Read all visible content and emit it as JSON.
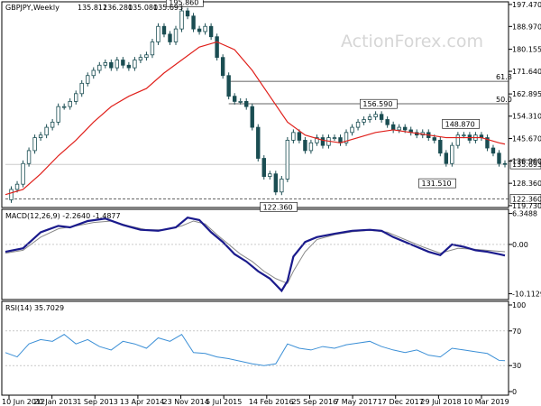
{
  "chart_data": [
    {
      "type": "candlestick",
      "panel": "price",
      "title": "GBPJPY,Weekly",
      "ohlc": {
        "open": "135.812",
        "high": "136.280",
        "low": "135.080",
        "close": "135.693"
      },
      "watermark": "ActionForex.com",
      "y_ticks": [
        "197.470",
        "188.970",
        "180.155",
        "171.640",
        "162.895",
        "154.310",
        "145.670",
        "136.960",
        "128.360",
        "119.730"
      ],
      "ylim": [
        119.0,
        198.5
      ],
      "current_price": "135.693",
      "x_ticks": [
        "10 Jun 2012",
        "20 Jan 2013",
        "1 Sep 2013",
        "13 Apr 2014",
        "23 Nov 2014",
        "5 Jul 2015",
        "14 Feb 2016",
        "25 Sep 2016",
        "7 May 2017",
        "17 Dec 2017",
        "29 Jul 2018",
        "10 Mar 2019"
      ],
      "annotations": [
        {
          "text": "195.860",
          "x": 30.5,
          "y": 195.86
        },
        {
          "text": "122.360",
          "x": 46.5,
          "y": 122.36
        },
        {
          "text": "156.590",
          "x": 63.5,
          "y": 156.59
        },
        {
          "text": "148.870",
          "x": 77.5,
          "y": 148.87
        },
        {
          "text": "131.510",
          "x": 73.5,
          "y": 131.51
        }
      ],
      "horizontal_levels": [
        {
          "label": "61.8",
          "value": 167.77
        },
        {
          "label": "50.0",
          "value": 159.11
        },
        {
          "label": "122.360",
          "value": 122.36
        }
      ],
      "close_series": [
        [
          0,
          122.0
        ],
        [
          1,
          126.0
        ],
        [
          2,
          128.0
        ],
        [
          3,
          136.0
        ],
        [
          4,
          141.0
        ],
        [
          5,
          146.0
        ],
        [
          6,
          147.0
        ],
        [
          7,
          150.0
        ],
        [
          8,
          152.0
        ],
        [
          9,
          158.0
        ],
        [
          10,
          158.0
        ],
        [
          11,
          160.0
        ],
        [
          12,
          163.0
        ],
        [
          13,
          167.0
        ],
        [
          14,
          170.0
        ],
        [
          15,
          172.0
        ],
        [
          16,
          174.0
        ],
        [
          17,
          175.0
        ],
        [
          18,
          173.0
        ],
        [
          19,
          176.0
        ],
        [
          20,
          174.0
        ],
        [
          21,
          173.0
        ],
        [
          22,
          176.0
        ],
        [
          23,
          177.0
        ],
        [
          24,
          178.0
        ],
        [
          25,
          183.0
        ],
        [
          26,
          189.0
        ],
        [
          27,
          186.0
        ],
        [
          28,
          183.0
        ],
        [
          29,
          188.0
        ],
        [
          30,
          195.0
        ],
        [
          31,
          193.0
        ],
        [
          32,
          188.0
        ],
        [
          33,
          187.0
        ],
        [
          34,
          189.0
        ],
        [
          35,
          185.0
        ],
        [
          36,
          177.0
        ],
        [
          37,
          170.0
        ],
        [
          38,
          162.0
        ],
        [
          39,
          160.0
        ],
        [
          40,
          160.0
        ],
        [
          41,
          158.0
        ],
        [
          42,
          150.0
        ],
        [
          43,
          138.0
        ],
        [
          44,
          131.0
        ],
        [
          45,
          132.0
        ],
        [
          46,
          125.0
        ],
        [
          47,
          130.0
        ],
        [
          48,
          145.0
        ],
        [
          49,
          148.0
        ],
        [
          50,
          145.0
        ],
        [
          51,
          141.0
        ],
        [
          52,
          144.0
        ],
        [
          53,
          146.0
        ],
        [
          54,
          143.0
        ],
        [
          55,
          146.0
        ],
        [
          56,
          146.0
        ],
        [
          57,
          144.0
        ],
        [
          58,
          148.0
        ],
        [
          59,
          150.0
        ],
        [
          60,
          152.0
        ],
        [
          61,
          153.0
        ],
        [
          62,
          154.0
        ],
        [
          63,
          155.0
        ],
        [
          64,
          153.0
        ],
        [
          65,
          151.0
        ],
        [
          66,
          149.0
        ],
        [
          67,
          150.0
        ],
        [
          68,
          149.0
        ],
        [
          69,
          148.0
        ],
        [
          70,
          147.0
        ],
        [
          71,
          148.0
        ],
        [
          72,
          146.0
        ],
        [
          73,
          145.0
        ],
        [
          74,
          140.0
        ],
        [
          75,
          136.0
        ],
        [
          76,
          143.0
        ],
        [
          77,
          147.0
        ],
        [
          78,
          147.0
        ],
        [
          79,
          145.0
        ],
        [
          80,
          147.0
        ],
        [
          81,
          146.0
        ],
        [
          82,
          142.0
        ],
        [
          83,
          140.0
        ],
        [
          84,
          136.0
        ],
        [
          85,
          135.7
        ]
      ],
      "ma_series": [
        [
          0,
          124.0
        ],
        [
          3,
          126.0
        ],
        [
          6,
          132.0
        ],
        [
          9,
          139.0
        ],
        [
          12,
          145.0
        ],
        [
          15,
          152.0
        ],
        [
          18,
          158.0
        ],
        [
          21,
          162.0
        ],
        [
          24,
          165.0
        ],
        [
          27,
          171.0
        ],
        [
          30,
          176.0
        ],
        [
          33,
          181.0
        ],
        [
          36,
          183.0
        ],
        [
          39,
          180.0
        ],
        [
          42,
          172.0
        ],
        [
          45,
          162.0
        ],
        [
          48,
          152.0
        ],
        [
          51,
          147.0
        ],
        [
          54,
          145.0
        ],
        [
          57,
          144.0
        ],
        [
          60,
          146.0
        ],
        [
          63,
          148.0
        ],
        [
          66,
          149.0
        ],
        [
          69,
          148.0
        ],
        [
          72,
          147.0
        ],
        [
          75,
          146.0
        ],
        [
          78,
          146.0
        ],
        [
          81,
          146.0
        ],
        [
          84,
          144.0
        ],
        [
          85,
          143.5
        ]
      ]
    },
    {
      "type": "line",
      "panel": "macd",
      "title": "MACD(12,26,9) -2.2640 -1.4877",
      "y_ticks": [
        "6.3488",
        "0.00",
        "-10.1129"
      ],
      "ylim": [
        -11.3,
        7.2
      ],
      "macd": [
        [
          0,
          -1.5
        ],
        [
          3,
          -0.8
        ],
        [
          6,
          2.5
        ],
        [
          9,
          3.8
        ],
        [
          11,
          3.5
        ],
        [
          14,
          4.8
        ],
        [
          17,
          5.3
        ],
        [
          20,
          4.0
        ],
        [
          23,
          3.0
        ],
        [
          26,
          2.8
        ],
        [
          29,
          3.5
        ],
        [
          31,
          5.5
        ],
        [
          33,
          5.0
        ],
        [
          35,
          2.5
        ],
        [
          37,
          0.5
        ],
        [
          39,
          -2.0
        ],
        [
          41,
          -3.5
        ],
        [
          43,
          -5.5
        ],
        [
          45,
          -7.0
        ],
        [
          47,
          -9.5
        ],
        [
          48,
          -7.5
        ],
        [
          49,
          -2.5
        ],
        [
          51,
          0.5
        ],
        [
          53,
          1.5
        ],
        [
          56,
          2.2
        ],
        [
          59,
          2.8
        ],
        [
          62,
          3.0
        ],
        [
          64,
          2.8
        ],
        [
          66,
          1.5
        ],
        [
          69,
          0.0
        ],
        [
          72,
          -1.5
        ],
        [
          74,
          -2.2
        ],
        [
          76,
          0.0
        ],
        [
          78,
          -0.5
        ],
        [
          80,
          -1.2
        ],
        [
          82,
          -1.5
        ],
        [
          84,
          -2.0
        ],
        [
          85,
          -2.264
        ]
      ],
      "signal": [
        [
          0,
          -1.8
        ],
        [
          3,
          -1.2
        ],
        [
          6,
          1.5
        ],
        [
          9,
          3.2
        ],
        [
          12,
          3.8
        ],
        [
          15,
          4.5
        ],
        [
          18,
          4.8
        ],
        [
          21,
          3.8
        ],
        [
          24,
          3.0
        ],
        [
          27,
          3.0
        ],
        [
          30,
          3.8
        ],
        [
          32,
          4.8
        ],
        [
          34,
          4.2
        ],
        [
          36,
          2.0
        ],
        [
          38,
          0.0
        ],
        [
          40,
          -2.0
        ],
        [
          42,
          -3.5
        ],
        [
          44,
          -5.5
        ],
        [
          46,
          -7.0
        ],
        [
          48,
          -8.0
        ],
        [
          49,
          -5.5
        ],
        [
          51,
          -1.5
        ],
        [
          53,
          1.0
        ],
        [
          56,
          2.0
        ],
        [
          59,
          2.6
        ],
        [
          62,
          2.9
        ],
        [
          65,
          2.5
        ],
        [
          68,
          1.0
        ],
        [
          71,
          -0.5
        ],
        [
          74,
          -1.8
        ],
        [
          77,
          -0.8
        ],
        [
          80,
          -1.0
        ],
        [
          83,
          -1.3
        ],
        [
          85,
          -1.4877
        ]
      ]
    },
    {
      "type": "line",
      "panel": "rsi",
      "title": "RSI(14) 35.7029",
      "y_ticks": [
        "100",
        "70",
        "30",
        "0"
      ],
      "ylim": [
        0,
        100
      ],
      "rsi": [
        [
          0,
          45
        ],
        [
          2,
          40
        ],
        [
          4,
          55
        ],
        [
          6,
          60
        ],
        [
          8,
          58
        ],
        [
          10,
          66
        ],
        [
          12,
          55
        ],
        [
          14,
          60
        ],
        [
          16,
          52
        ],
        [
          18,
          48
        ],
        [
          20,
          58
        ],
        [
          22,
          55
        ],
        [
          24,
          50
        ],
        [
          26,
          62
        ],
        [
          28,
          58
        ],
        [
          30,
          66
        ],
        [
          32,
          45
        ],
        [
          34,
          44
        ],
        [
          36,
          40
        ],
        [
          38,
          38
        ],
        [
          40,
          35
        ],
        [
          42,
          32
        ],
        [
          44,
          30
        ],
        [
          46,
          32
        ],
        [
          48,
          55
        ],
        [
          50,
          50
        ],
        [
          52,
          48
        ],
        [
          54,
          52
        ],
        [
          56,
          50
        ],
        [
          58,
          54
        ],
        [
          60,
          56
        ],
        [
          62,
          58
        ],
        [
          64,
          52
        ],
        [
          66,
          48
        ],
        [
          68,
          45
        ],
        [
          70,
          48
        ],
        [
          72,
          42
        ],
        [
          74,
          40
        ],
        [
          76,
          50
        ],
        [
          78,
          48
        ],
        [
          80,
          46
        ],
        [
          82,
          44
        ],
        [
          84,
          36
        ],
        [
          85,
          35.7
        ]
      ]
    }
  ]
}
